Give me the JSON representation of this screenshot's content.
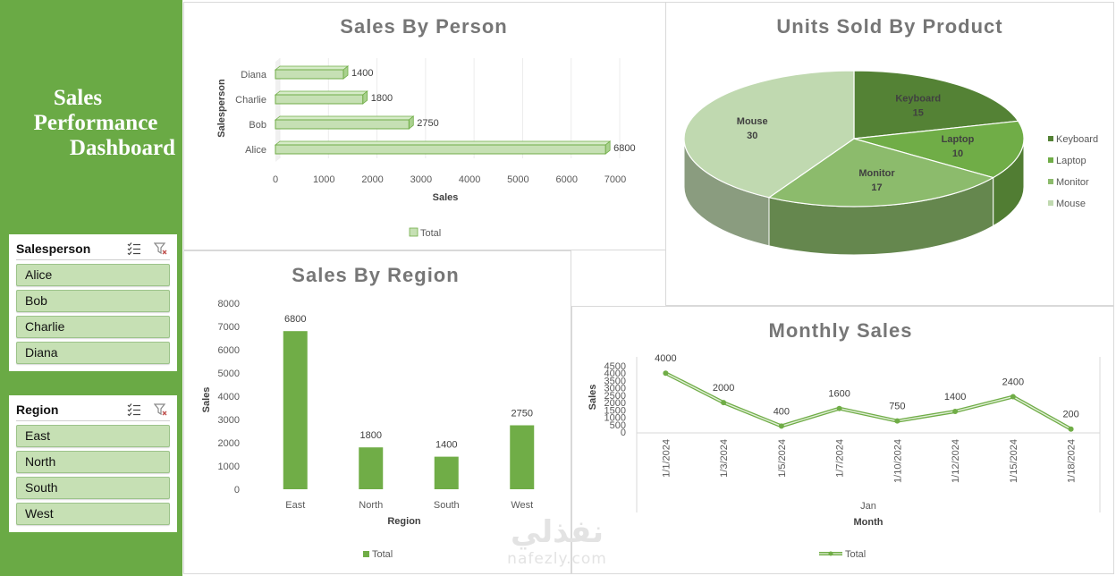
{
  "dashboard": {
    "title_lines": [
      "Sales",
      "Performance",
      "Dashboard"
    ]
  },
  "slicers": {
    "salesperson": {
      "title": "Salesperson",
      "items": [
        "Alice",
        "Bob",
        "Charlie",
        "Diana"
      ]
    },
    "region": {
      "title": "Region",
      "items": [
        "East",
        "North",
        "South",
        "West"
      ]
    }
  },
  "watermark": {
    "arabic": "نفذلي",
    "latin": "nafezly.com"
  },
  "colors": {
    "sidebar": "#6aaa45",
    "bar": "#70ad47",
    "bar_light": "#c6e0b4",
    "title": "#767676"
  },
  "chart_data": [
    {
      "id": "sales-by-person",
      "type": "bar",
      "orientation": "horizontal",
      "title": "Sales By Person",
      "categories": [
        "Alice",
        "Bob",
        "Charlie",
        "Diana"
      ],
      "series": [
        {
          "name": "Total",
          "values": [
            6800,
            2750,
            1800,
            1400
          ]
        }
      ],
      "xlabel": "Sales",
      "ylabel": "Salesperson",
      "xlim": [
        0,
        7000
      ],
      "xticks": [
        0,
        1000,
        2000,
        3000,
        4000,
        5000,
        6000,
        7000
      ],
      "grid": true,
      "legend": "bottom"
    },
    {
      "id": "units-sold-by-product",
      "type": "pie",
      "title": "Units Sold By Product",
      "labels": [
        "Keyboard",
        "Laptop",
        "Monitor",
        "Mouse"
      ],
      "values": [
        15,
        10,
        17,
        30
      ],
      "colors": [
        "#548235",
        "#70ad47",
        "#8cbb6c",
        "#c0d9b0"
      ],
      "legend": "right"
    },
    {
      "id": "sales-by-region",
      "type": "bar",
      "title": "Sales By Region",
      "categories": [
        "East",
        "North",
        "South",
        "West"
      ],
      "series": [
        {
          "name": "Total",
          "values": [
            6800,
            1800,
            1400,
            2750
          ]
        }
      ],
      "xlabel": "Region",
      "ylabel": "Sales",
      "ylim": [
        0,
        8000
      ],
      "yticks": [
        0,
        1000,
        2000,
        3000,
        4000,
        5000,
        6000,
        7000,
        8000
      ],
      "grid": false,
      "legend": "bottom"
    },
    {
      "id": "monthly-sales",
      "type": "line",
      "title": "Monthly Sales",
      "categories": [
        "1/1/2024",
        "1/3/2024",
        "1/5/2024",
        "1/7/2024",
        "1/10/2024",
        "1/12/2024",
        "1/15/2024",
        "1/18/2024"
      ],
      "group_label": "Jan",
      "series": [
        {
          "name": "Total",
          "values": [
            4000,
            2000,
            400,
            1600,
            750,
            1400,
            2400,
            200
          ]
        }
      ],
      "xlabel": "Month",
      "ylabel": "Sales",
      "ylim": [
        0,
        4500
      ],
      "yticks": [
        0,
        500,
        1000,
        1500,
        2000,
        2500,
        3000,
        3500,
        4000,
        4500
      ],
      "grid": false,
      "legend": "bottom"
    }
  ]
}
